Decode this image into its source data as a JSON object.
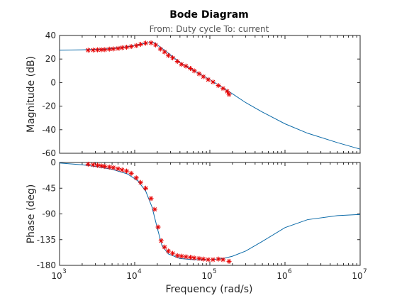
{
  "chart_data": {
    "type": "line",
    "title": "Bode Diagram",
    "subtitle": "From: Duty cycle  To: current",
    "xlabel": "Frequency  (rad/s)",
    "xscale": "log",
    "xlim": [
      1000,
      10000000
    ],
    "xticks": [
      {
        "value": 1000,
        "mantissa": "10",
        "exp": "3"
      },
      {
        "value": 10000,
        "mantissa": "10",
        "exp": "4"
      },
      {
        "value": 100000,
        "mantissa": "10",
        "exp": "5"
      },
      {
        "value": 1000000,
        "mantissa": "10",
        "exp": "6"
      },
      {
        "value": 10000000,
        "mantissa": "10",
        "exp": "7"
      }
    ],
    "magnitude": {
      "ylabel": "Magnitude (dB)",
      "ylim": [
        -60,
        40
      ],
      "yticks": [
        40,
        20,
        0,
        -20,
        -40,
        -60
      ],
      "model": [
        [
          1000,
          27.5
        ],
        [
          2000,
          27.8
        ],
        [
          4000,
          28.5
        ],
        [
          6000,
          29.5
        ],
        [
          8000,
          30.5
        ],
        [
          10000,
          31.5
        ],
        [
          13000,
          33.0
        ],
        [
          16000,
          34.0
        ],
        [
          18000,
          34.0
        ],
        [
          20000,
          32.0
        ],
        [
          25000,
          27.5
        ],
        [
          30000,
          23.5
        ],
        [
          40000,
          17.0
        ],
        [
          50000,
          13.5
        ],
        [
          70000,
          8.0
        ],
        [
          100000,
          2.5
        ],
        [
          150000,
          -4.5
        ],
        [
          200000,
          -9.5
        ],
        [
          300000,
          -17.0
        ],
        [
          500000,
          -25.0
        ],
        [
          1000000,
          -35.0
        ],
        [
          2000000,
          -43.0
        ],
        [
          5000000,
          -51.0
        ],
        [
          10000000,
          -56.5
        ]
      ],
      "measured": [
        [
          2400,
          27.5
        ],
        [
          2800,
          27.6
        ],
        [
          3200,
          27.8
        ],
        [
          3600,
          27.9
        ],
        [
          4000,
          28.0
        ],
        [
          4600,
          28.4
        ],
        [
          5200,
          28.6
        ],
        [
          6000,
          29.0
        ],
        [
          6800,
          29.6
        ],
        [
          7800,
          30.0
        ],
        [
          9000,
          30.6
        ],
        [
          10500,
          31.4
        ],
        [
          12000,
          32.5
        ],
        [
          14000,
          33.5
        ],
        [
          16500,
          33.7
        ],
        [
          19000,
          32.0
        ],
        [
          22000,
          28.5
        ],
        [
          25000,
          26.0
        ],
        [
          28000,
          23.0
        ],
        [
          32000,
          21.0
        ],
        [
          37000,
          18.0
        ],
        [
          42000,
          15.5
        ],
        [
          48000,
          14.0
        ],
        [
          55000,
          12.0
        ],
        [
          62000,
          10.0
        ],
        [
          72000,
          7.5
        ],
        [
          82000,
          5.0
        ],
        [
          95000,
          2.5
        ],
        [
          110000,
          0.5
        ],
        [
          130000,
          -2.5
        ],
        [
          150000,
          -5.0
        ],
        [
          170000,
          -7.5
        ],
        [
          180000,
          -10.0
        ]
      ]
    },
    "phase": {
      "ylabel": "Phase (deg)",
      "ylim": [
        -180,
        0
      ],
      "yticks": [
        0,
        -45,
        -90,
        -135,
        -180
      ],
      "model": [
        [
          1000,
          -1
        ],
        [
          2000,
          -4
        ],
        [
          3000,
          -7
        ],
        [
          5000,
          -12
        ],
        [
          8000,
          -20
        ],
        [
          11000,
          -32
        ],
        [
          14000,
          -50
        ],
        [
          17000,
          -78
        ],
        [
          20000,
          -115
        ],
        [
          23000,
          -145
        ],
        [
          28000,
          -160
        ],
        [
          40000,
          -168
        ],
        [
          60000,
          -170
        ],
        [
          100000,
          -170
        ],
        [
          150000,
          -168
        ],
        [
          200000,
          -164
        ],
        [
          300000,
          -155
        ],
        [
          500000,
          -138
        ],
        [
          1000000,
          -114
        ],
        [
          2000000,
          -100
        ],
        [
          5000000,
          -93
        ],
        [
          10000000,
          -91
        ]
      ],
      "measured": [
        [
          2400,
          -3
        ],
        [
          2800,
          -4
        ],
        [
          3200,
          -5
        ],
        [
          3600,
          -6
        ],
        [
          4000,
          -7
        ],
        [
          4600,
          -8
        ],
        [
          5200,
          -9
        ],
        [
          6000,
          -11
        ],
        [
          6800,
          -13
        ],
        [
          7800,
          -15
        ],
        [
          9000,
          -19
        ],
        [
          10500,
          -27
        ],
        [
          12000,
          -35
        ],
        [
          14000,
          -45
        ],
        [
          16500,
          -63
        ],
        [
          18500,
          -82
        ],
        [
          20500,
          -113
        ],
        [
          22500,
          -137
        ],
        [
          25000,
          -148
        ],
        [
          28000,
          -155
        ],
        [
          32000,
          -159
        ],
        [
          37000,
          -163
        ],
        [
          42000,
          -164
        ],
        [
          48000,
          -165
        ],
        [
          55000,
          -166
        ],
        [
          62000,
          -167
        ],
        [
          72000,
          -168
        ],
        [
          82000,
          -169
        ],
        [
          95000,
          -170
        ],
        [
          110000,
          -170
        ],
        [
          130000,
          -169
        ],
        [
          150000,
          -170
        ],
        [
          180000,
          -173
        ]
      ]
    },
    "colors": {
      "model": "#0b6aa8",
      "measured": "#e60000"
    }
  }
}
